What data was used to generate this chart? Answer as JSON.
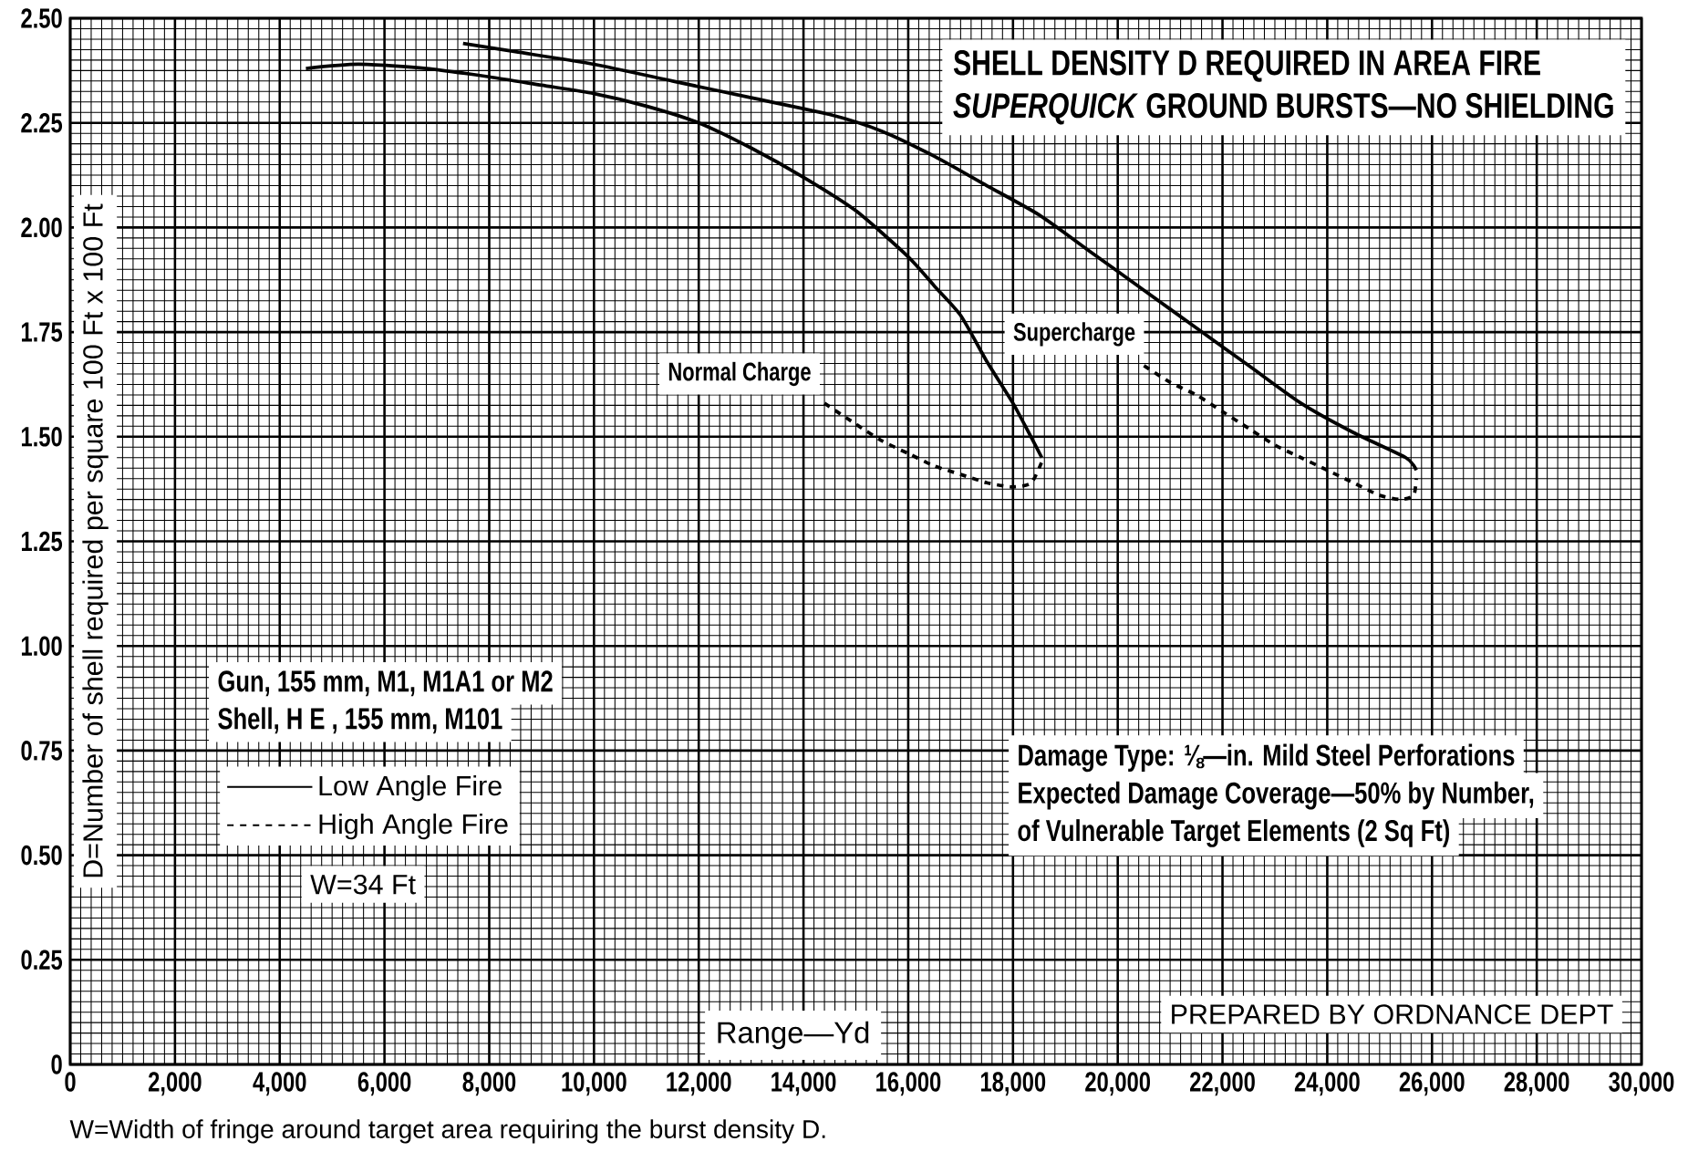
{
  "chart_data": {
    "type": "line",
    "title": "SHELL DENSITY D REQUIRED IN AREA FIRE",
    "subtitle": "*SUPERQUICK* GROUND BURSTS—NO SHIELDING",
    "xlabel": "Range—Yd",
    "ylabel": "D=Number of shell  required per square 100 Ft  x 100 Ft",
    "series": [
      {
        "name": "Low Angle Fire",
        "color": "#000000",
        "line_style": "solid",
        "x": [
          4500,
          5500,
          6800,
          8000,
          9000,
          10000,
          11000,
          12000,
          13000,
          14000,
          15000,
          16000,
          16500,
          17000,
          17500,
          18000,
          18300,
          18550
        ],
        "values": [
          2.38,
          2.39,
          2.38,
          2.36,
          2.34,
          2.32,
          2.29,
          2.25,
          2.19,
          2.12,
          2.04,
          1.93,
          1.86,
          1.79,
          1.68,
          1.58,
          1.51,
          1.45
        ]
      },
      {
        "color": "#000000",
        "line_style": "solid",
        "x": [
          7500,
          8500,
          10000,
          11500,
          13000,
          14500,
          15500,
          16500,
          17500,
          18500,
          19500,
          20500,
          21500,
          22500,
          23500,
          24500,
          25500,
          25700
        ],
        "values": [
          2.44,
          2.42,
          2.39,
          2.35,
          2.31,
          2.27,
          2.23,
          2.17,
          2.1,
          2.03,
          1.94,
          1.85,
          1.76,
          1.67,
          1.58,
          1.51,
          1.45,
          1.42
        ]
      },
      {
        "name": "High Angle Fire",
        "color": "#000000",
        "line_style": "dashed",
        "x": [
          14400,
          15000,
          15500,
          16000,
          16500,
          17000,
          17500,
          18000,
          18350,
          18550
        ],
        "values": [
          1.58,
          1.53,
          1.49,
          1.46,
          1.43,
          1.41,
          1.39,
          1.38,
          1.39,
          1.44
        ]
      },
      {
        "color": "#000000",
        "line_style": "dashed",
        "x": [
          20500,
          21000,
          21500,
          22000,
          22500,
          23000,
          23500,
          24000,
          24500,
          25000,
          25400,
          25650,
          25700
        ],
        "values": [
          1.67,
          1.63,
          1.6,
          1.56,
          1.52,
          1.48,
          1.45,
          1.42,
          1.39,
          1.36,
          1.35,
          1.36,
          1.4
        ]
      }
    ],
    "xlim": [
      0,
      30000
    ],
    "ylim": [
      0,
      2.5
    ],
    "xticks": [
      0,
      {
        "value": 2000,
        "label": "2,000"
      },
      {
        "value": 4000,
        "label": "4,000"
      },
      {
        "value": 6000,
        "label": "6,000"
      },
      {
        "value": 8000,
        "label": "8,000"
      },
      {
        "value": 10000,
        "label": "10,000"
      },
      {
        "value": 12000,
        "label": "12,000"
      },
      {
        "value": 14000,
        "label": "14,000"
      },
      {
        "value": 16000,
        "label": "16,000"
      },
      {
        "value": 18000,
        "label": "18,000"
      },
      {
        "value": 20000,
        "label": "20,000"
      },
      {
        "value": 22000,
        "label": "22,000"
      },
      {
        "value": 24000,
        "label": "24,000"
      },
      {
        "value": 26000,
        "label": "26,000"
      },
      {
        "value": 28000,
        "label": "28,000"
      },
      {
        "value": 30000,
        "label": "30,000"
      }
    ],
    "yticks": [
      0,
      0.25,
      {
        "value": 0.5,
        "label": "0.50"
      },
      0.75,
      {
        "value": 1,
        "label": "1.00"
      },
      1.25,
      {
        "value": 1.5,
        "label": "1.50"
      },
      1.75,
      {
        "value": 2,
        "label": "2.00"
      },
      2.25,
      {
        "value": 2.5,
        "label": "2.50"
      }
    ],
    "grid": true,
    "legend": "left",
    "marker": "none",
    "annotations": [
      "Gun, 155 mm, M1, M1A1 or M2",
      "Shell, H E , 155 mm, M101",
      "W=34 Ft",
      "Damage Type: ⅛—in. Mild Steel Perforations",
      "Expected Damage Coverage—50% by Number,",
      "of Vulnerable Target Elements (2 Sq Ft)",
      "PREPARED BY ORDNANCE DEPT",
      "W=Width of fringe around target area requiring the burst density D.",
      "Normal Charge",
      "Supercharge"
    ]
  }
}
